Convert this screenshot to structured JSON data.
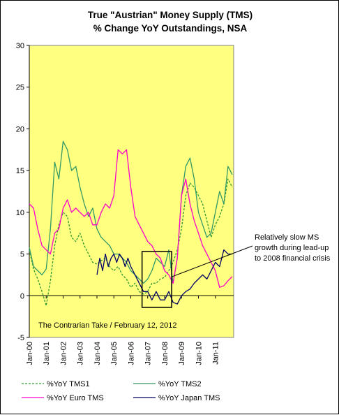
{
  "chart_data": {
    "type": "line",
    "title": "True \"Austrian\" Money Supply (TMS)",
    "subtitle": "% Change YoY Outstandings, NSA",
    "xlabel": "",
    "ylabel": "",
    "ylim": [
      -5,
      30
    ],
    "yticks": [
      -5,
      0,
      5,
      10,
      15,
      20,
      25,
      30
    ],
    "xticks": [
      "Jan-00",
      "Jan-01",
      "Jan-02",
      "Jan-03",
      "Jan-04",
      "Jan-05",
      "Jan-06",
      "Jan-07",
      "Jan-08",
      "Jan-09",
      "Jan-10",
      "Jan-11"
    ],
    "x_start": "Jan-00",
    "x_end": "Feb-12",
    "plot_background": "#ffff80",
    "grid": false,
    "legend_position": "bottom",
    "source_note": "The Contrarian Take / February 12, 2012",
    "annotation": {
      "lines": [
        "Relatively slow MS",
        "growth during lead-up",
        "to 2008 financial crisis"
      ],
      "box_x": [
        "Sep-06",
        "Jun-08"
      ],
      "box_y": [
        -1.4,
        5.3
      ]
    },
    "series": [
      {
        "name": "%YoY TMS1",
        "color": "#339933",
        "dash": "dashed",
        "x": [
          "Jan-00",
          "Apr-00",
          "Jul-00",
          "Oct-00",
          "Jan-01",
          "Apr-01",
          "Jul-01",
          "Oct-01",
          "Jan-02",
          "Apr-02",
          "Jul-02",
          "Oct-02",
          "Jan-03",
          "Apr-03",
          "Jul-03",
          "Oct-03",
          "Jan-04",
          "Apr-04",
          "Jul-04",
          "Oct-04",
          "Jan-05",
          "Apr-05",
          "Jul-05",
          "Oct-05",
          "Jan-06",
          "Apr-06",
          "Jul-06",
          "Oct-06",
          "Jan-07",
          "Apr-07",
          "Jul-07",
          "Oct-07",
          "Jan-08",
          "Apr-08",
          "Jul-08",
          "Oct-08",
          "Jan-09",
          "Apr-09",
          "Jul-09",
          "Oct-09",
          "Jan-10",
          "Apr-10",
          "Jul-10",
          "Oct-10",
          "Jan-11",
          "Apr-11",
          "Jul-11",
          "Oct-11",
          "Jan-12"
        ],
        "values": [
          5.5,
          3.2,
          2.0,
          0.5,
          -1.2,
          1.8,
          6.0,
          8.5,
          10.0,
          9.5,
          7.0,
          6.5,
          7.5,
          6.0,
          5.0,
          4.0,
          3.8,
          4.2,
          4.5,
          3.5,
          3.0,
          3.5,
          2.5,
          2.0,
          1.0,
          1.5,
          0.5,
          0.2,
          0.5,
          1.5,
          1.5,
          2.0,
          2.2,
          3.0,
          4.0,
          5.5,
          8.0,
          12.0,
          13.5,
          13.0,
          12.0,
          11.0,
          9.0,
          7.0,
          8.5,
          9.5,
          11.0,
          14.0,
          13.0
        ]
      },
      {
        "name": "%YoY TMS2",
        "color": "#339966",
        "dash": "solid",
        "x": [
          "Jan-00",
          "Apr-00",
          "Jul-00",
          "Oct-00",
          "Jan-01",
          "Apr-01",
          "Jul-01",
          "Oct-01",
          "Jan-02",
          "Apr-02",
          "Jul-02",
          "Oct-02",
          "Jan-03",
          "Apr-03",
          "Jul-03",
          "Oct-03",
          "Jan-04",
          "Apr-04",
          "Jul-04",
          "Oct-04",
          "Jan-05",
          "Apr-05",
          "Jul-05",
          "Oct-05",
          "Jan-06",
          "Apr-06",
          "Jul-06",
          "Oct-06",
          "Jan-07",
          "Apr-07",
          "Jul-07",
          "Oct-07",
          "Jan-08",
          "Apr-08",
          "Jul-08",
          "Oct-08",
          "Jan-09",
          "Apr-09",
          "Jul-09",
          "Oct-09",
          "Jan-10",
          "Apr-10",
          "Jul-10",
          "Oct-10",
          "Jan-11",
          "Apr-11",
          "Jul-11",
          "Oct-11",
          "Jan-12"
        ],
        "values": [
          5.8,
          3.5,
          3.0,
          2.5,
          3.2,
          8.0,
          16.0,
          14.0,
          18.5,
          17.5,
          15.0,
          15.5,
          13.0,
          11.0,
          9.5,
          10.5,
          8.0,
          7.0,
          6.5,
          6.0,
          5.0,
          5.0,
          4.5,
          4.0,
          3.0,
          2.5,
          2.0,
          1.5,
          2.0,
          3.0,
          4.5,
          4.0,
          3.5,
          5.5,
          1.5,
          4.5,
          12.0,
          15.5,
          16.5,
          14.0,
          10.0,
          8.5,
          7.0,
          7.5,
          10.0,
          12.5,
          11.0,
          15.5,
          14.5
        ]
      },
      {
        "name": "%YoY Euro TMS",
        "color": "#ff00cc",
        "dash": "solid",
        "x": [
          "Jan-00",
          "Apr-00",
          "Jul-00",
          "Oct-00",
          "Jan-01",
          "Apr-01",
          "Jul-01",
          "Oct-01",
          "Jan-02",
          "Apr-02",
          "Jul-02",
          "Oct-02",
          "Jan-03",
          "Apr-03",
          "Jul-03",
          "Oct-03",
          "Jan-04",
          "Apr-04",
          "Jul-04",
          "Oct-04",
          "Jan-05",
          "Apr-05",
          "Jul-05",
          "Oct-05",
          "Jan-06",
          "Apr-06",
          "Jul-06",
          "Oct-06",
          "Jan-07",
          "Apr-07",
          "Jul-07",
          "Oct-07",
          "Jan-08",
          "Apr-08",
          "Jul-08",
          "Oct-08",
          "Jan-09",
          "Apr-09",
          "Jul-09",
          "Oct-09",
          "Jan-10",
          "Apr-10",
          "Jul-10",
          "Oct-10",
          "Jan-11",
          "Apr-11",
          "Jul-11",
          "Oct-11",
          "Jan-12"
        ],
        "values": [
          11.0,
          10.5,
          8.0,
          6.0,
          5.5,
          5.0,
          7.5,
          8.0,
          10.5,
          11.5,
          10.0,
          10.5,
          10.0,
          9.5,
          10.0,
          8.5,
          8.5,
          10.0,
          11.0,
          10.5,
          12.0,
          17.5,
          17.0,
          17.5,
          13.0,
          9.5,
          8.5,
          7.5,
          6.5,
          6.0,
          5.0,
          4.5,
          3.0,
          2.5,
          1.5,
          4.5,
          12.0,
          14.0,
          11.0,
          9.0,
          7.5,
          6.0,
          5.0,
          4.0,
          3.0,
          1.0,
          1.2,
          1.8,
          2.3
        ]
      },
      {
        "name": "%YoY Japan TMS",
        "color": "#000066",
        "dash": "solid",
        "x": [
          "Jan-04",
          "Mar-04",
          "May-04",
          "Jul-04",
          "Sep-04",
          "Nov-04",
          "Jan-05",
          "Mar-05",
          "May-05",
          "Jul-05",
          "Sep-05",
          "Nov-05",
          "Jan-06",
          "Apr-06",
          "Jul-06",
          "Oct-06",
          "Jan-07",
          "Apr-07",
          "Jul-07",
          "Oct-07",
          "Jan-08",
          "Apr-08",
          "Jul-08",
          "Oct-08",
          "Jan-09",
          "Apr-09",
          "Jul-09",
          "Oct-09",
          "Jan-10",
          "Apr-10",
          "Jul-10",
          "Oct-10",
          "Jan-11",
          "Apr-11",
          "Jul-11",
          "Oct-11",
          "Jan-12"
        ],
        "values": [
          2.5,
          4.5,
          3.0,
          5.0,
          3.5,
          4.5,
          5.0,
          4.0,
          5.0,
          4.5,
          3.5,
          4.5,
          3.5,
          2.5,
          1.5,
          0.5,
          0.5,
          -0.5,
          0.5,
          -0.5,
          -0.5,
          0.5,
          -0.8,
          -1.0,
          0.0,
          0.5,
          0.8,
          1.5,
          2.0,
          2.5,
          2.0,
          3.0,
          4.0,
          3.5,
          5.5,
          5.0,
          5.0
        ]
      }
    ]
  }
}
